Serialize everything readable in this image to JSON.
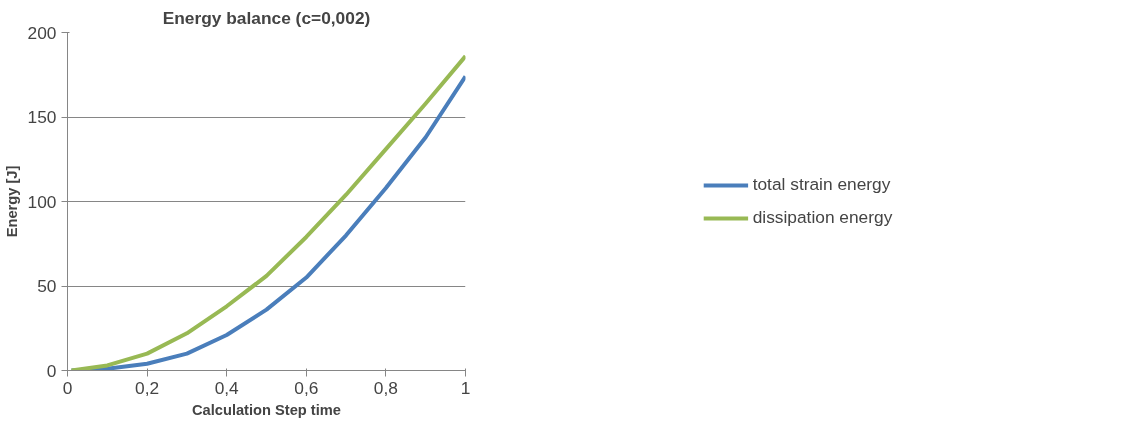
{
  "chart_data": {
    "type": "line",
    "title": "Energy balance (c=0,002)",
    "xlabel": "Calculation Step time",
    "ylabel": "Energy [J]",
    "xlim": [
      0,
      1
    ],
    "ylim": [
      0,
      200
    ],
    "xticks": [
      0,
      {
        "value": 0.2,
        "label": "0,2"
      },
      {
        "value": 0.4,
        "label": "0,4"
      },
      {
        "value": 0.6,
        "label": "0,6"
      },
      {
        "value": 0.8,
        "label": "0,8"
      },
      1
    ],
    "yticks": [
      0,
      50,
      100,
      150,
      200
    ],
    "grid": "y",
    "legend": "right",
    "marker": "none",
    "line_style": "solid",
    "series": [
      {
        "name": "total strain energy",
        "color": "#4a7ebb",
        "x": [
          0.01,
          0.1,
          0.2,
          0.3,
          0.4,
          0.5,
          0.6,
          0.7,
          0.8,
          0.9,
          1.0
        ],
        "values": [
          0,
          1,
          4,
          10,
          21,
          36,
          55,
          80,
          108,
          138,
          174
        ]
      },
      {
        "name": "dissipation energy",
        "color": "#98b954",
        "x": [
          0.01,
          0.1,
          0.2,
          0.3,
          0.4,
          0.5,
          0.6,
          0.7,
          0.8,
          0.9,
          1.0
        ],
        "values": [
          0,
          3,
          10,
          22,
          38,
          56,
          79,
          104,
          131,
          158,
          186
        ]
      }
    ]
  }
}
